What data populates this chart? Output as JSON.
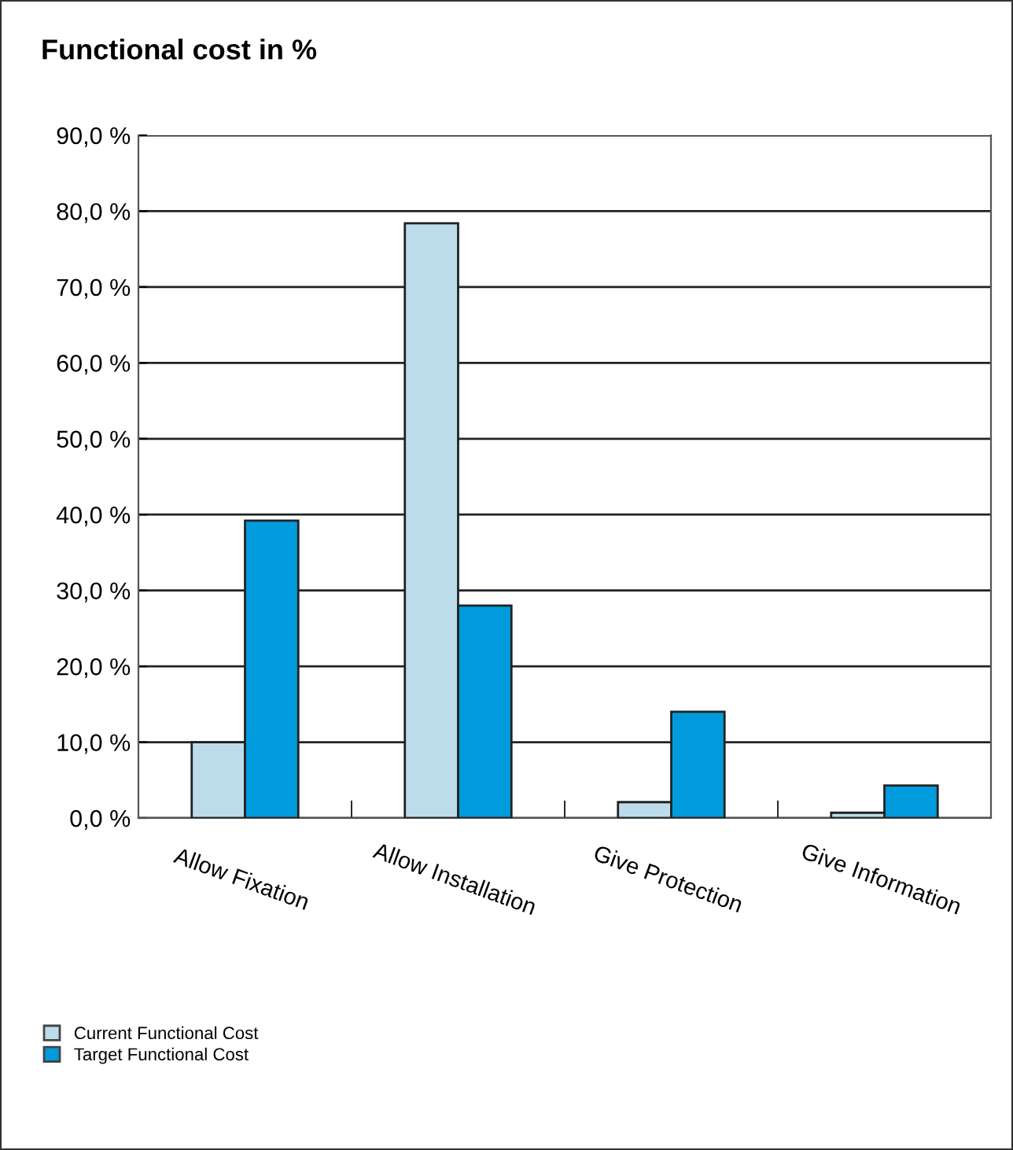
{
  "chart_data": {
    "type": "bar",
    "title": "Functional cost in %",
    "categories": [
      "Allow Fixation",
      "Allow Installation",
      "Give Protection",
      "Give Information"
    ],
    "series": [
      {
        "name": "Current Functional Cost",
        "color": "#bcdcec",
        "values": [
          10.0,
          78.4,
          2.1,
          0.7
        ]
      },
      {
        "name": "Target Functional Cost",
        "color": "#009bdc",
        "values": [
          39.2,
          28.0,
          14.0,
          4.3
        ]
      }
    ],
    "ylim": [
      0,
      90
    ],
    "yticks": [
      {
        "value": 0,
        "label": "0,0 %"
      },
      {
        "value": 10,
        "label": "10,0 %"
      },
      {
        "value": 20,
        "label": "20,0 %"
      },
      {
        "value": 30,
        "label": "30,0 %"
      },
      {
        "value": 40,
        "label": "40,0 %"
      },
      {
        "value": 50,
        "label": "50,0 %"
      },
      {
        "value": 60,
        "label": "60,0 %"
      },
      {
        "value": 70,
        "label": "70,0 %"
      },
      {
        "value": 80,
        "label": "80,0 %"
      },
      {
        "value": 90,
        "label": "90,0 %"
      }
    ],
    "grid": "y",
    "legend": "bottom left"
  }
}
